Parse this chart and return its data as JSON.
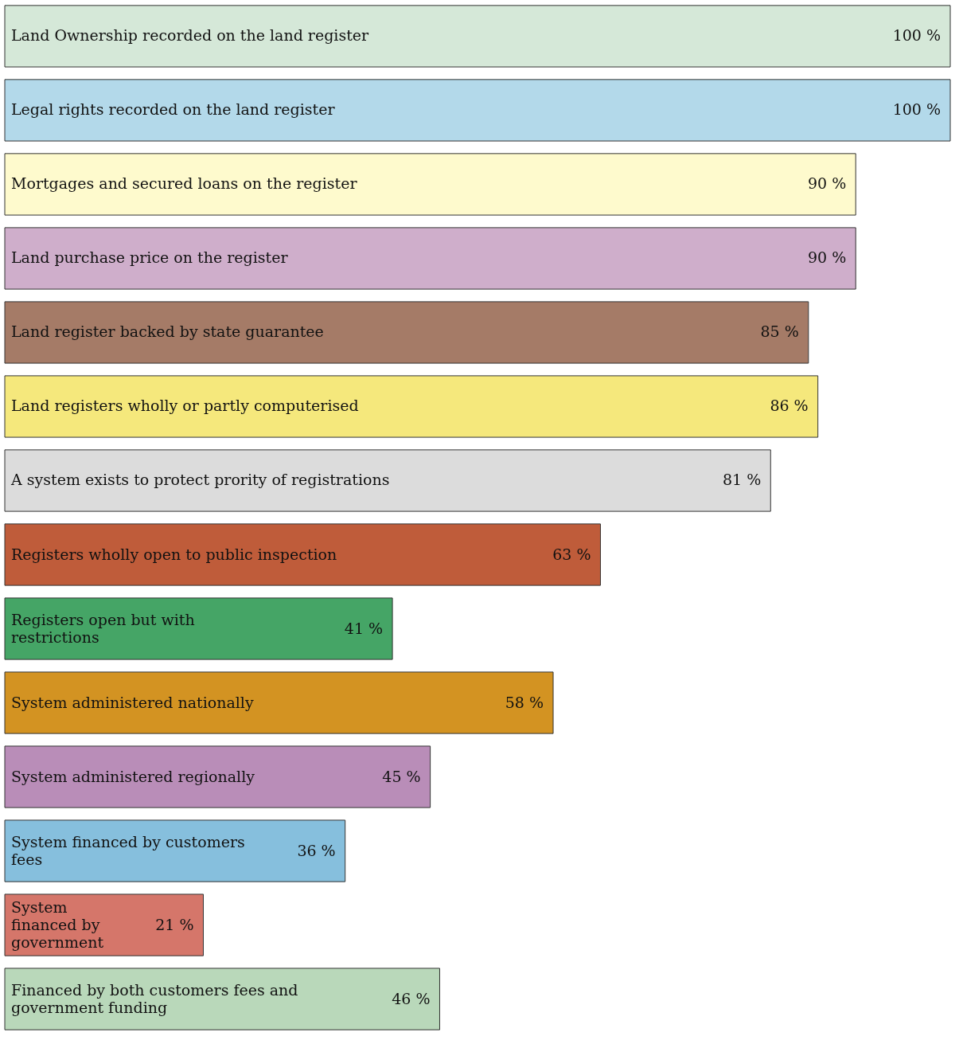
{
  "chart_data": {
    "type": "bar",
    "orientation": "horizontal",
    "categories": [
      "Land Ownership recorded on the land register",
      "Legal rights recorded on the land register",
      "Mortgages and secured loans on the register",
      "Land purchase price on the register",
      "Land register backed by state guarantee",
      "Land registers wholly or partly computerised",
      "A system exists to protect prority of registrations",
      "Registers wholly open to public inspection",
      "Registers open but with restrictions",
      "System administered nationally",
      "System administered regionally",
      "System financed by customers fees",
      "System financed by government",
      "Financed by both customers fees and government funding"
    ],
    "values": [
      100,
      100,
      90,
      90,
      85,
      86,
      81,
      63,
      41,
      58,
      45,
      36,
      21,
      46
    ],
    "value_labels": [
      "100 %",
      "100 %",
      "90 %",
      "90 %",
      "85 %",
      "86 %",
      "81 %",
      "63 %",
      "41 %",
      "58 %",
      "45 %",
      "36 %",
      "21 %",
      "46 %"
    ],
    "colors": [
      "#d5e8d8",
      "#b3d9ea",
      "#fefacd",
      "#cfaecb",
      "#a57b67",
      "#f5e87c",
      "#dcdcdc",
      "#bf5c3a",
      "#45a566",
      "#d39322",
      "#b98db8",
      "#86bfdd",
      "#d5766a",
      "#b9d8ba"
    ]
  }
}
